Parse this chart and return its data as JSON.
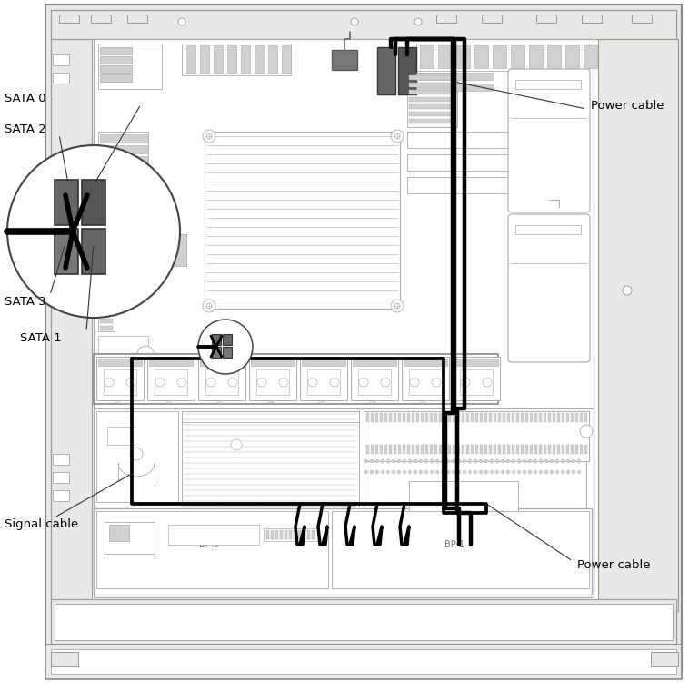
{
  "bg_color": "#ffffff",
  "lc": "#aaaaaa",
  "dk": "#555555",
  "bk": "#000000",
  "gray1": "#888888",
  "gray2": "#999999",
  "gray3": "#bbbbbb",
  "gray_fill": "#d0d0d0",
  "chassis_fill": "#e8e8e8",
  "figsize": [
    7.58,
    7.59
  ],
  "dpi": 100,
  "labels": {
    "sata0": "SATA 0",
    "sata1": "SATA 1",
    "sata2": "SATA 2",
    "sata3": "SATA 3",
    "signal": "Signal cable",
    "power_top": "Power cable",
    "power_bot": "Power cable"
  }
}
